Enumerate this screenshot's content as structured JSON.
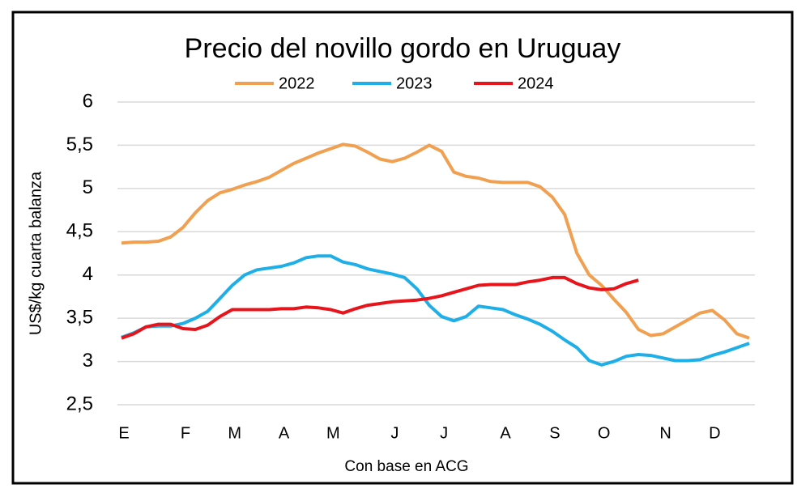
{
  "chart_data": {
    "type": "line",
    "title": "Precio del novillo gordo en Uruguay",
    "x_label": "Con base en ACG",
    "y_label": "US$/kg cuarta balanza",
    "categories": [
      "E",
      null,
      null,
      null,
      null,
      "F",
      null,
      null,
      null,
      "M",
      null,
      null,
      null,
      "A",
      null,
      null,
      null,
      "M",
      null,
      null,
      null,
      null,
      "J",
      null,
      null,
      null,
      "J",
      null,
      null,
      null,
      null,
      "A",
      null,
      null,
      null,
      "S",
      null,
      null,
      null,
      "O",
      null,
      null,
      null,
      null,
      "N",
      null,
      null,
      null,
      "D",
      null,
      null,
      null
    ],
    "ylim": [
      2.5,
      6
    ],
    "yticks": [
      {
        "value": 2.5,
        "label": "2,5"
      },
      3,
      {
        "value": 3.5,
        "label": "3,5"
      },
      4,
      {
        "value": 4.5,
        "label": "4,5"
      },
      5,
      {
        "value": 5.5,
        "label": "5,5"
      },
      6
    ],
    "grid": true,
    "legend": "top",
    "series": [
      {
        "name": "2022",
        "color": "#f0a050",
        "values": [
          4.37,
          4.38,
          4.38,
          4.39,
          4.44,
          4.55,
          4.72,
          4.86,
          4.95,
          4.99,
          5.04,
          5.08,
          5.13,
          5.21,
          5.29,
          5.35,
          5.41,
          5.46,
          5.51,
          5.49,
          5.42,
          5.34,
          5.31,
          5.35,
          5.42,
          5.5,
          5.43,
          5.19,
          5.14,
          5.12,
          5.08,
          5.07,
          5.07,
          5.07,
          5.02,
          4.9,
          4.7,
          4.25,
          4.0,
          3.88,
          3.72,
          3.57,
          3.37,
          3.3,
          3.32,
          3.4,
          3.48,
          3.56,
          3.59,
          3.48,
          3.32,
          3.27
        ]
      },
      {
        "name": "2023",
        "color": "#1eaee8",
        "values": [
          3.28,
          3.33,
          3.4,
          3.41,
          3.41,
          3.44,
          3.5,
          3.58,
          3.73,
          3.88,
          4.0,
          4.06,
          4.08,
          4.1,
          4.14,
          4.2,
          4.22,
          4.22,
          4.15,
          4.12,
          4.07,
          4.04,
          4.01,
          3.97,
          3.84,
          3.65,
          3.52,
          3.47,
          3.52,
          3.64,
          3.62,
          3.6,
          3.54,
          3.49,
          3.43,
          3.35,
          3.25,
          3.16,
          3.01,
          2.96,
          3.0,
          3.06,
          3.08,
          3.07,
          3.04,
          3.01,
          3.01,
          3.02,
          3.07,
          3.11,
          3.16,
          3.21
        ]
      },
      {
        "name": "2024",
        "color": "#e8141c",
        "values": [
          3.27,
          3.32,
          3.4,
          3.43,
          3.43,
          3.38,
          3.37,
          3.42,
          3.52,
          3.6,
          3.6,
          3.6,
          3.6,
          3.61,
          3.61,
          3.63,
          3.62,
          3.6,
          3.56,
          3.61,
          3.65,
          3.67,
          3.69,
          3.7,
          3.71,
          3.73,
          3.76,
          3.8,
          3.84,
          3.88,
          3.89,
          3.89,
          3.89,
          3.92,
          3.94,
          3.97,
          3.97,
          3.9,
          3.85,
          3.83,
          3.84,
          3.9,
          3.94,
          null,
          null,
          null,
          null,
          null,
          null,
          null,
          null,
          null
        ]
      }
    ]
  }
}
